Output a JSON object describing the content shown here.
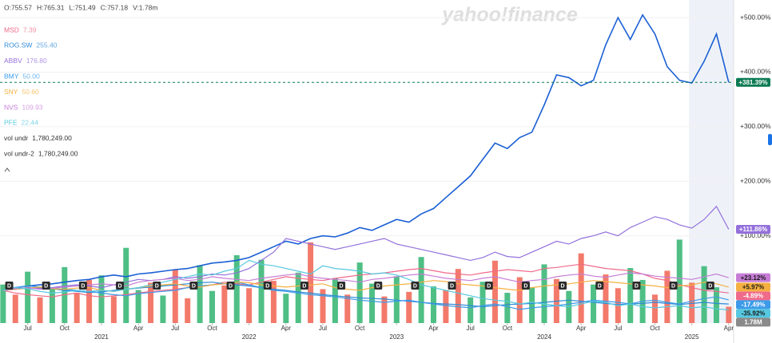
{
  "chart_data": {
    "type": "line",
    "watermark": "yahoo!finance",
    "ohlc_labels": [
      "O:755.57",
      "H:765.31",
      "L:751.49",
      "C:757.18",
      "V:1.78m"
    ],
    "x": [
      -8,
      -7,
      -6,
      -5,
      -4,
      -3,
      -2,
      -1,
      0,
      1,
      2,
      3,
      4,
      5,
      6,
      7,
      8,
      9,
      10,
      11,
      12,
      13,
      14,
      15,
      16,
      17,
      18,
      19,
      20,
      21,
      22,
      23,
      24,
      25,
      26,
      27,
      28,
      29,
      30,
      31,
      32,
      33,
      34,
      35,
      36,
      37,
      38,
      39,
      40,
      41,
      42,
      43,
      44,
      45,
      46,
      47,
      48,
      49,
      50,
      51
    ],
    "xlim": [
      -8.25,
      51.4
    ],
    "xticks": [
      {
        "value": -6,
        "label": "Jul"
      },
      {
        "value": -3,
        "label": "Oct"
      },
      {
        "value": 0,
        "label": "2021"
      },
      {
        "value": 3,
        "label": "Apr"
      },
      {
        "value": 6,
        "label": "Jul"
      },
      {
        "value": 9,
        "label": "Oct"
      },
      {
        "value": 12,
        "label": "2022"
      },
      {
        "value": 15,
        "label": "Apr"
      },
      {
        "value": 18,
        "label": "Jul"
      },
      {
        "value": 21,
        "label": "Oct"
      },
      {
        "value": 24,
        "label": "2023"
      },
      {
        "value": 27,
        "label": "Apr"
      },
      {
        "value": 30,
        "label": "Jul"
      },
      {
        "value": 33,
        "label": "Oct"
      },
      {
        "value": 36,
        "label": "2024"
      },
      {
        "value": 39,
        "label": "Apr"
      },
      {
        "value": 42,
        "label": "Jul"
      },
      {
        "value": 45,
        "label": "Oct"
      },
      {
        "value": 48,
        "label": "2025"
      },
      {
        "value": 51,
        "label": "Apr"
      }
    ],
    "ylim": [
      -60,
      525
    ],
    "yticks": [
      {
        "value": 100,
        "label": "+100.00%"
      },
      {
        "value": 200,
        "label": "+200.00%"
      },
      {
        "value": 300,
        "label": "+300.00%"
      },
      {
        "value": 400,
        "label": "+400.00%"
      },
      {
        "value": 500,
        "label": "+500.00%"
      }
    ],
    "grid": true,
    "series": [
      {
        "color": "#1a5fd4",
        "label_color": "#0b7a53",
        "end_label": "+381.39%",
        "values": [
          0,
          5,
          8,
          10,
          12,
          15,
          18,
          20,
          25,
          28,
          25,
          30,
          32,
          35,
          38,
          40,
          45,
          50,
          52,
          55,
          60,
          70,
          80,
          90,
          85,
          95,
          100,
          98,
          105,
          115,
          110,
          120,
          130,
          125,
          140,
          150,
          170,
          190,
          210,
          240,
          270,
          260,
          280,
          290,
          340,
          395,
          390,
          375,
          385,
          450,
          500,
          460,
          505,
          470,
          410,
          385,
          380,
          420,
          470,
          381.39
        ]
      },
      {
        "name": "MSD",
        "price": "7.39",
        "color": "#f06a8a",
        "end_label": "-4.89%",
        "values": [
          0,
          -5,
          -8,
          -10,
          -12,
          -8,
          -5,
          -10,
          -12,
          -10,
          -8,
          -5,
          -2,
          0,
          2,
          5,
          8,
          10,
          15,
          12,
          10,
          15,
          20,
          25,
          22,
          20,
          18,
          22,
          25,
          28,
          30,
          32,
          35,
          38,
          40,
          36,
          32,
          30,
          28,
          32,
          35,
          38,
          36,
          34,
          40,
          42,
          45,
          48,
          44,
          40,
          38,
          36,
          30,
          22,
          18,
          10,
          5,
          0,
          -2,
          -4.89
        ]
      },
      {
        "name": "ROG.SW",
        "price": "255.40",
        "color": "#2e8ad8",
        "values": [
          0,
          2,
          4,
          5,
          3,
          0,
          -2,
          -4,
          -3,
          0,
          2,
          4,
          6,
          8,
          10,
          12,
          14,
          15,
          12,
          10,
          8,
          5,
          2,
          0,
          -3,
          -5,
          -8,
          -10,
          -12,
          -14,
          -15,
          -16,
          -18,
          -20,
          -22,
          -24,
          -25,
          -26,
          -28,
          -30,
          -28,
          -26,
          -25,
          -24,
          -22,
          -20,
          -18,
          -20,
          -22,
          -24,
          -26,
          -25,
          -24,
          -22,
          -24,
          -26,
          -24,
          -22,
          -24,
          -25
        ]
      },
      {
        "name": "ABBV",
        "price": "176.80",
        "color": "#9370db",
        "end_label": "+111.86%",
        "values": [
          0,
          2,
          5,
          3,
          5,
          8,
          10,
          8,
          5,
          10,
          15,
          20,
          18,
          20,
          25,
          22,
          25,
          30,
          28,
          32,
          40,
          55,
          70,
          95,
          90,
          85,
          80,
          75,
          80,
          85,
          90,
          95,
          85,
          80,
          75,
          70,
          65,
          60,
          55,
          60,
          70,
          62,
          60,
          70,
          80,
          90,
          85,
          95,
          100,
          107,
          100,
          115,
          125,
          135,
          130,
          120,
          114,
          130,
          154,
          111.86
        ]
      },
      {
        "name": "BMY",
        "price": "50.00",
        "color": "#3d9be9",
        "end_label": "-17.49%",
        "values": [
          0,
          5,
          8,
          6,
          4,
          2,
          0,
          -2,
          -5,
          -8,
          -10,
          -6,
          -4,
          -2,
          0,
          5,
          8,
          10,
          12,
          15,
          10,
          5,
          0,
          -2,
          -5,
          -8,
          -10,
          -12,
          -15,
          -18,
          -20,
          -22,
          -20,
          -18,
          -22,
          -25,
          -28,
          -30,
          -32,
          -28,
          -25,
          -30,
          -35,
          -32,
          -30,
          -28,
          -25,
          -22,
          -18,
          -20,
          -22,
          -25,
          -20,
          -18,
          -22,
          -25,
          -20,
          -15,
          -12,
          -17.49
        ]
      },
      {
        "name": "SNY",
        "price": "50.60",
        "color": "#f5b041",
        "end_label": "+5.97%",
        "values": [
          0,
          2,
          4,
          6,
          3,
          2,
          4,
          5,
          0,
          -2,
          2,
          5,
          8,
          10,
          12,
          8,
          6,
          10,
          12,
          15,
          14,
          10,
          8,
          6,
          8,
          10,
          12,
          5,
          2,
          0,
          5,
          8,
          10,
          12,
          15,
          18,
          16,
          12,
          10,
          8,
          5,
          2,
          0,
          5,
          8,
          10,
          12,
          15,
          18,
          16,
          14,
          12,
          10,
          8,
          5,
          8,
          10,
          15,
          12,
          5.97
        ]
      },
      {
        "name": "NVS",
        "price": "109.93",
        "color": "#c77dd6",
        "end_label": "+23.12%",
        "values": [
          0,
          3,
          5,
          2,
          4,
          6,
          8,
          10,
          12,
          10,
          8,
          15,
          18,
          20,
          22,
          18,
          20,
          25,
          22,
          20,
          18,
          22,
          25,
          28,
          30,
          25,
          22,
          20,
          18,
          15,
          20,
          22,
          25,
          28,
          30,
          26,
          22,
          20,
          18,
          22,
          25,
          20,
          15,
          18,
          20,
          25,
          28,
          30,
          26,
          24,
          28,
          32,
          30,
          26,
          24,
          22,
          20,
          25,
          30,
          23.12
        ]
      },
      {
        "name": "PFE",
        "price": "22.44",
        "color": "#56c8e0",
        "end_label": "-35.92%",
        "values": [
          0,
          5,
          3,
          -2,
          -5,
          -3,
          0,
          -2,
          0,
          -2,
          2,
          5,
          10,
          15,
          20,
          25,
          30,
          28,
          35,
          40,
          55,
          48,
          45,
          40,
          35,
          30,
          45,
          40,
          38,
          35,
          30,
          32,
          28,
          20,
          10,
          5,
          0,
          -5,
          -10,
          -15,
          -18,
          -20,
          -25,
          -22,
          -25,
          -28,
          -30,
          -25,
          -20,
          -22,
          -28,
          -25,
          -30,
          -32,
          -30,
          -28,
          -32,
          -30,
          -34,
          -35.92
        ]
      }
    ],
    "volume": {
      "ylim": [
        0,
        10000000
      ],
      "colors": {
        "up": "#3cb878",
        "down": "#f26b5b"
      },
      "last_label": "1.78M",
      "values": [
        4200000,
        3100000,
        5600000,
        2800000,
        3900000,
        6100000,
        3300000,
        4700000,
        5200000,
        2900000,
        8200000,
        3600000,
        4400000,
        3000000,
        5800000,
        2700000,
        6300000,
        3500000,
        4100000,
        7400000,
        3800000,
        6900000,
        4600000,
        3200000,
        5500000,
        8800000,
        3700000,
        4900000,
        3100000,
        6600000,
        4300000,
        2900000,
        5100000,
        3400000,
        7200000,
        4000000,
        3600000,
        5900000,
        2800000,
        4500000,
        6800000,
        3300000,
        5000000,
        3900000,
        6400000,
        4800000,
        3500000,
        7600000,
        4200000,
        5300000,
        3800000,
        6000000,
        4700000,
        3100000,
        5700000,
        9100000,
        4400000,
        6200000,
        3900000,
        1780000
      ],
      "up": [
        true,
        false,
        true,
        false,
        true,
        true,
        false,
        false,
        true,
        false,
        true,
        true,
        false,
        true,
        false,
        false,
        true,
        true,
        false,
        true,
        false,
        true,
        false,
        true,
        true,
        false,
        false,
        true,
        false,
        true,
        true,
        false,
        true,
        false,
        true,
        true,
        false,
        false,
        true,
        true,
        false,
        true,
        false,
        true,
        true,
        false,
        true,
        false,
        true,
        false,
        false,
        true,
        true,
        false,
        false,
        true,
        false,
        true,
        true,
        false
      ]
    },
    "volume_legend": [
      {
        "name": "vol undr",
        "value": "1,780,249.00"
      },
      {
        "name": "vol undr-2",
        "value": "1,780,249.00"
      }
    ],
    "dividends": {
      "label": "D",
      "x": [
        -7.5,
        -4.5,
        -1.5,
        1.5,
        4.5,
        7.5,
        10.5,
        13.5,
        16.5,
        19.5,
        22.5,
        25.5,
        28.5,
        31.5,
        34.5,
        37.5,
        40.5,
        43.5,
        46.5,
        49.5
      ]
    }
  }
}
